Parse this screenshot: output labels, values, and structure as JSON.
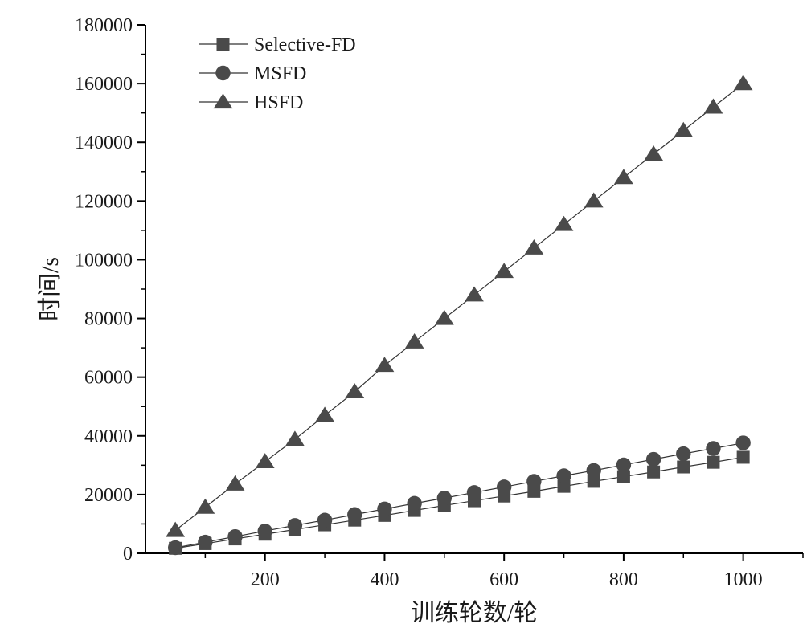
{
  "chart_data": {
    "type": "line",
    "title": "",
    "xlabel": "训练轮数/轮",
    "ylabel": "时间/s",
    "xlim": [
      0,
      1100
    ],
    "ylim": [
      0,
      180000
    ],
    "xticks": [
      200,
      400,
      600,
      800,
      1000
    ],
    "yticks": [
      0,
      20000,
      40000,
      60000,
      80000,
      100000,
      120000,
      140000,
      160000,
      180000
    ],
    "grid": false,
    "legend_position": "top-left",
    "x": [
      50,
      100,
      150,
      200,
      250,
      300,
      350,
      400,
      450,
      500,
      550,
      600,
      650,
      700,
      750,
      800,
      850,
      900,
      950,
      1000
    ],
    "series": [
      {
        "name": "Selective-FD",
        "marker": "square",
        "color": "#4a4a4a",
        "values": [
          1700,
          3300,
          4900,
          6500,
          8100,
          9700,
          11300,
          12900,
          14600,
          16300,
          17900,
          19500,
          21100,
          22800,
          24500,
          26100,
          27700,
          29400,
          31000,
          32700
        ]
      },
      {
        "name": "MSFD",
        "marker": "circle",
        "color": "#4a4a4a",
        "values": [
          1900,
          3800,
          5700,
          7600,
          9500,
          11300,
          13200,
          15100,
          17000,
          18800,
          20700,
          22600,
          24500,
          26400,
          28200,
          30100,
          32000,
          33900,
          35700,
          37600
        ]
      },
      {
        "name": "HSFD",
        "marker": "triangle",
        "color": "#4a4a4a",
        "values": [
          7800,
          15700,
          23600,
          31200,
          38800,
          47000,
          55000,
          64000,
          72000,
          80000,
          88000,
          96000,
          104000,
          112000,
          120000,
          128000,
          136000,
          144000,
          152000,
          160000
        ]
      }
    ]
  }
}
